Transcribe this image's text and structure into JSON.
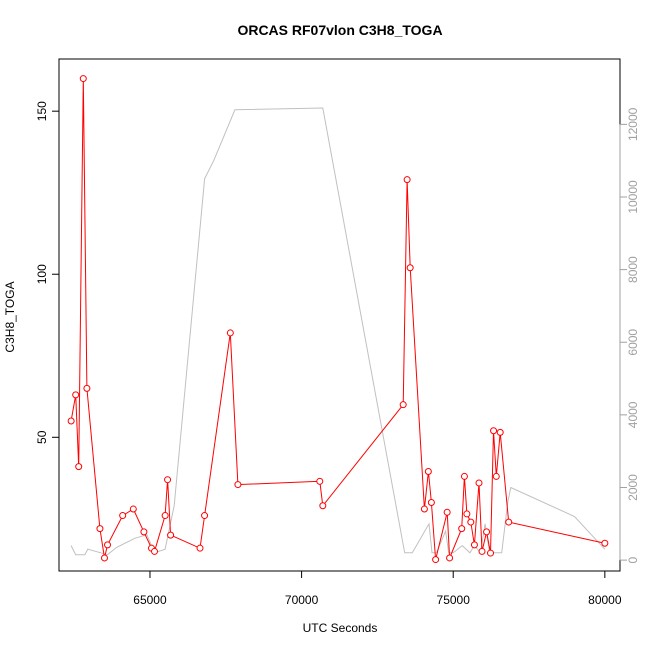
{
  "chart_data": {
    "type": "line",
    "title": "ORCAS RF07vlon C3H8_TOGA",
    "xlabel": "UTC Seconds",
    "ylabel": "C3H8_TOGA",
    "xlim": [
      62000,
      80500
    ],
    "ylim": [
      9,
      166
    ],
    "y2lim": [
      -300,
      13800
    ],
    "x_ticks": [
      65000,
      70000,
      75000,
      80000
    ],
    "x_tick_labels": [
      "65000",
      "70000",
      "75000",
      "80000"
    ],
    "y_ticks": [
      50,
      100,
      150
    ],
    "y_tick_labels": [
      "50",
      "100",
      "150"
    ],
    "y2_ticks": [
      0,
      2000,
      4000,
      6000,
      8000,
      10000,
      12000
    ],
    "y2_tick_labels": [
      "0",
      "2000",
      "4000",
      "6000",
      "8000",
      "10000",
      "12000"
    ],
    "grid": false,
    "colors": {
      "primary": "#ff0000",
      "secondary": "#c0c0c0",
      "axes": "#000000",
      "right_axis": "#a0a0a0"
    },
    "series": [
      {
        "axis": "left",
        "style": "line+points",
        "color": "#ff0000",
        "x": [
          62400,
          62550,
          62650,
          62800,
          62920,
          63350,
          63500,
          63600,
          64100,
          64450,
          64800,
          65050,
          65150,
          65500,
          65580,
          65680,
          66650,
          66800,
          67650,
          67900,
          70600,
          70700,
          73350,
          73480,
          73580,
          74050,
          74180,
          74280,
          74420,
          74800,
          74880,
          75280,
          75370,
          75450,
          75580,
          75700,
          75850,
          75950,
          76100,
          76230,
          76330,
          76420,
          76550,
          76830,
          80000
        ],
        "y": [
          55,
          63,
          41,
          160,
          65,
          22,
          13,
          17,
          26,
          28,
          21,
          16,
          15,
          26,
          37,
          20,
          16,
          26,
          82,
          35.5,
          36.5,
          29,
          60,
          129,
          102,
          28,
          39.5,
          30,
          12.5,
          27,
          13,
          22,
          38,
          26.5,
          24,
          17,
          36,
          15,
          21,
          14.5,
          52,
          38,
          51.5,
          24,
          17.5
        ]
      },
      {
        "axis": "right",
        "style": "line",
        "color": "#c0c0c0",
        "x": [
          62400,
          62550,
          62850,
          62950,
          63600,
          63900,
          64500,
          64900,
          65150,
          65500,
          65800,
          66800,
          67100,
          67800,
          70700,
          73400,
          73650,
          74200,
          74300,
          74450,
          74750,
          74850,
          75000,
          75300,
          75550,
          75700,
          75900,
          76050,
          76200,
          76400,
          76600,
          76800,
          76900,
          79000,
          80000
        ],
        "y": [
          400,
          150,
          150,
          300,
          150,
          350,
          600,
          700,
          200,
          300,
          1500,
          10500,
          11000,
          12400,
          12450,
          200,
          200,
          1000,
          200,
          200,
          800,
          200,
          200,
          400,
          200,
          400,
          200,
          1000,
          200,
          200,
          200,
          1600,
          2000,
          1200,
          300
        ]
      }
    ]
  }
}
